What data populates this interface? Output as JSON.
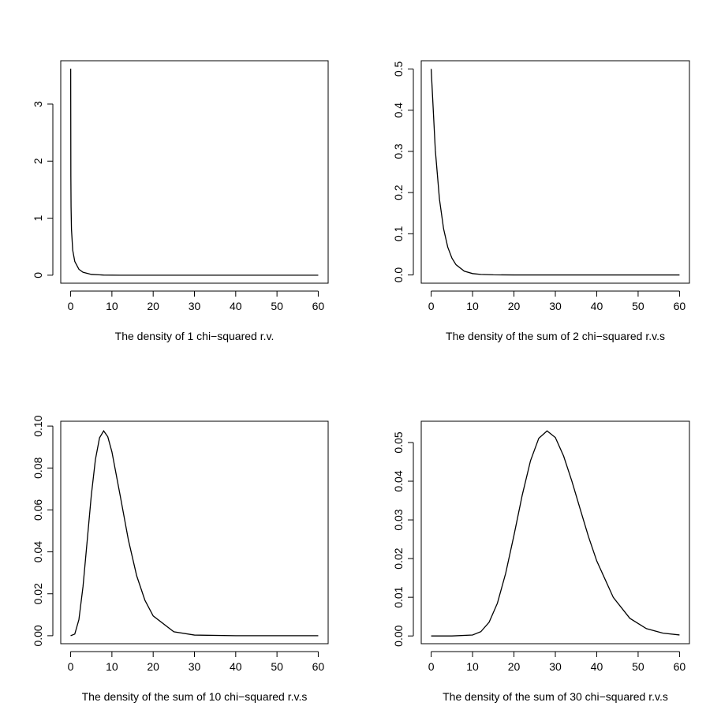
{
  "chart_data": [
    {
      "type": "line",
      "xlabel": "The density of 1 chi−squared r.v.",
      "color": "#000000",
      "x": [
        0.012,
        0.05,
        0.1,
        0.2,
        0.5,
        1,
        2,
        3,
        5,
        8,
        12,
        20,
        30,
        40,
        50,
        60
      ],
      "values": [
        3.62,
        1.74,
        1.2,
        0.807,
        0.439,
        0.242,
        0.104,
        0.0514,
        0.0146,
        0.00258,
        0.000285,
        4e-06,
        0,
        0,
        0,
        0
      ],
      "xlim": [
        -2.4,
        62.4
      ],
      "ylim": [
        -0.14,
        3.76
      ],
      "xticks": [
        0,
        10,
        20,
        30,
        40,
        50,
        60
      ],
      "yticks": [
        0,
        1,
        2,
        3
      ]
    },
    {
      "type": "line",
      "xlabel": "The density of the sum of 2 chi−squared r.v.s",
      "color": "#000000",
      "x": [
        0,
        1,
        2,
        3,
        4,
        5,
        6,
        8,
        10,
        12,
        15,
        20,
        30,
        40,
        50,
        60
      ],
      "values": [
        0.5,
        0.303,
        0.184,
        0.112,
        0.0677,
        0.041,
        0.0249,
        0.00916,
        0.00337,
        0.00124,
        0.00028,
        2e-05,
        0,
        0,
        0,
        0
      ],
      "xlim": [
        -2.4,
        62.4
      ],
      "ylim": [
        -0.02,
        0.52
      ],
      "xticks": [
        0,
        10,
        20,
        30,
        40,
        50,
        60
      ],
      "yticks": [
        {
          "value": 0,
          "label": "0.0"
        },
        0.1,
        0.2,
        0.3,
        0.4,
        0.5
      ]
    },
    {
      "type": "line",
      "xlabel": "The density of the sum of 10 chi−squared r.v.s",
      "color": "#000000",
      "x": [
        0,
        1,
        2,
        3,
        4,
        5,
        6,
        7,
        8,
        9,
        10,
        12,
        14,
        16,
        18,
        20,
        25,
        30,
        40,
        50,
        60
      ],
      "values": [
        0,
        0.00079,
        0.00766,
        0.0235,
        0.0451,
        0.0668,
        0.084,
        0.0944,
        0.0977,
        0.0949,
        0.0877,
        0.0669,
        0.0456,
        0.0286,
        0.0169,
        0.00946,
        0.0019,
        0.00032,
        7e-06,
        0,
        0
      ],
      "xlim": [
        -2.4,
        62.4
      ],
      "ylim": [
        -0.0038,
        0.1023
      ],
      "xticks": [
        0,
        10,
        20,
        30,
        40,
        50,
        60
      ],
      "yticks": [
        {
          "value": 0,
          "label": "0.00"
        },
        0.02,
        0.04,
        0.06,
        0.08,
        {
          "value": 0.1,
          "label": "0.10"
        }
      ]
    },
    {
      "type": "line",
      "xlabel": "The density of the sum of 30 chi−squared r.v.s",
      "color": "#000000",
      "x": [
        0,
        5,
        10,
        12,
        14,
        16,
        18,
        20,
        22,
        24,
        26,
        28,
        30,
        32,
        34,
        36,
        38,
        40,
        44,
        48,
        52,
        56,
        60
      ],
      "values": [
        0,
        0,
        0.000236,
        0.00111,
        0.00355,
        0.00846,
        0.0162,
        0.026,
        0.0364,
        0.0453,
        0.0511,
        0.053,
        0.0513,
        0.0465,
        0.04,
        0.0328,
        0.0257,
        0.0194,
        0.00996,
        0.00456,
        0.00189,
        0.00072,
        0.00026
      ],
      "xlim": [
        -2.4,
        62.4
      ],
      "ylim": [
        -0.002,
        0.0555
      ],
      "xticks": [
        0,
        10,
        20,
        30,
        40,
        50,
        60
      ],
      "yticks": [
        {
          "value": 0,
          "label": "0.00"
        },
        0.01,
        0.02,
        0.03,
        0.04,
        0.05
      ]
    }
  ]
}
